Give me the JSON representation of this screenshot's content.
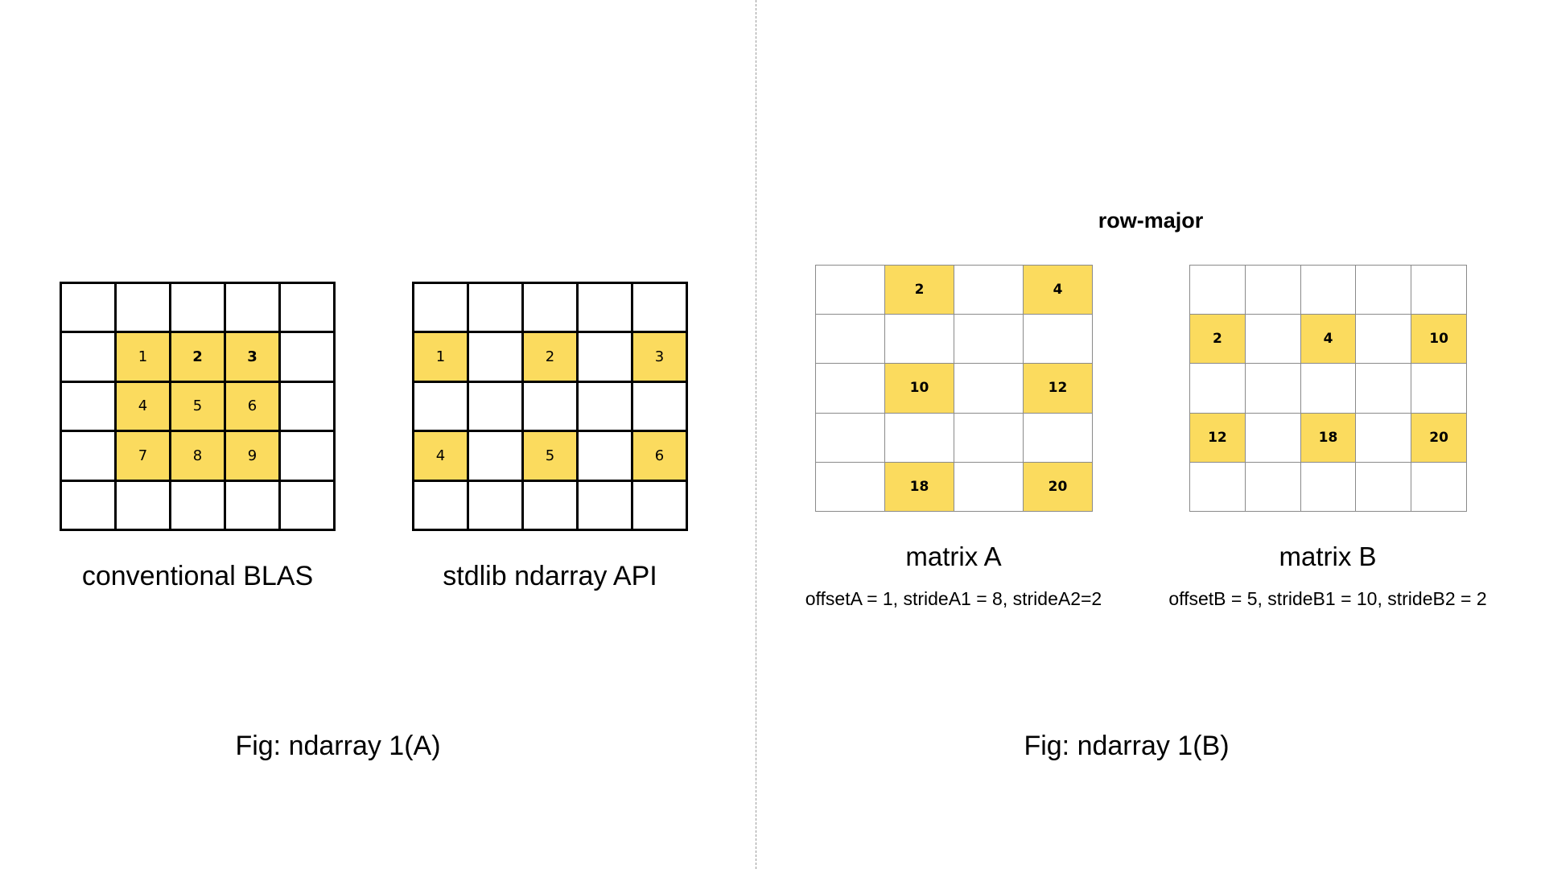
{
  "fig_a": {
    "caption": "Fig: ndarray 1(A)",
    "conventional": {
      "label": "conventional BLAS",
      "cells": [
        "",
        "",
        "",
        "",
        "",
        "",
        "1",
        "2",
        "3",
        "",
        "",
        "4",
        "5",
        "6",
        "",
        "",
        "7",
        "8",
        "9",
        "",
        "",
        "",
        "",
        "",
        ""
      ],
      "highlight": [
        6,
        7,
        8,
        11,
        12,
        13,
        16,
        17,
        18
      ],
      "bold": [
        7,
        8
      ]
    },
    "stdlib": {
      "label": "stdlib ndarray API",
      "cells": [
        "",
        "",
        "",
        "",
        "",
        "1",
        "",
        "2",
        "",
        "3",
        "",
        "",
        "",
        "",
        "",
        "4",
        "",
        "5",
        "",
        "6",
        "",
        "",
        "",
        "",
        ""
      ],
      "highlight": [
        5,
        7,
        9,
        15,
        17,
        19
      ],
      "bold": []
    }
  },
  "fig_b": {
    "caption": "Fig: ndarray 1(B)",
    "heading": "row-major",
    "matrix_a": {
      "label": "matrix A",
      "params": "offsetA = 1, strideA1 = 8, strideA2=2",
      "cells": [
        "",
        "2",
        "",
        "4",
        "",
        "",
        "",
        "",
        "",
        "10",
        "",
        "12",
        "",
        "",
        "",
        "",
        "",
        "18",
        "",
        "20"
      ],
      "highlight": [
        1,
        3,
        9,
        11,
        17,
        19
      ]
    },
    "matrix_b": {
      "label": "matrix B",
      "params": "offsetB = 5, strideB1 = 10, strideB2 = 2",
      "cells": [
        "",
        "",
        "",
        "",
        "",
        "2",
        "",
        "4",
        "",
        "10",
        "",
        "",
        "",
        "",
        "",
        "12",
        "",
        "18",
        "",
        "20",
        "",
        "",
        "",
        "",
        ""
      ],
      "highlight": [
        5,
        7,
        9,
        15,
        17,
        19
      ]
    }
  },
  "colors": {
    "highlight": "#fbdb5e",
    "grid_a_lines": "#000000",
    "grid_b_lines": "#8a8a8a"
  }
}
